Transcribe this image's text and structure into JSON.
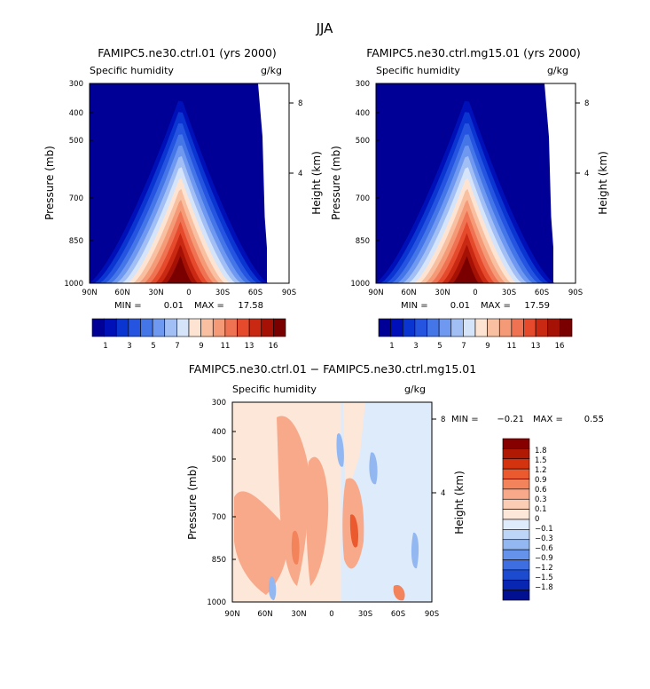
{
  "page_title": "JJA",
  "chart_data": [
    {
      "type": "contour",
      "title": "FAMIPC5.ne30.ctrl.01 (yrs 2000)",
      "variable": "Specific humidity",
      "units": "g/kg",
      "ylabel": "Pressure (mb)",
      "ylabel_right": "Height (km)",
      "x_ticks": [
        "90N",
        "60N",
        "30N",
        "0",
        "30S",
        "60S",
        "90S"
      ],
      "y_ticks": [
        "300",
        "400",
        "500",
        "700",
        "850",
        "1000"
      ],
      "y_right_ticks": [
        "8",
        "4"
      ],
      "x_range": [
        90,
        -90
      ],
      "y_range": [
        1000,
        300
      ],
      "y_scale": "log",
      "min_label": "MIN =",
      "min_value": "0.01",
      "max_label": "MAX =",
      "max_value": "17.58",
      "colorbar_ticks": [
        "1",
        "3",
        "5",
        "7",
        "9",
        "11",
        "13",
        "16"
      ],
      "colorbar_orientation": "horizontal",
      "field_peak_lat": 8
    },
    {
      "type": "contour",
      "title": "FAMIPC5.ne30.ctrl.mg15.01 (yrs 2000)",
      "variable": "Specific humidity",
      "units": "g/kg",
      "ylabel": "Pressure (mb)",
      "ylabel_right": "Height (km)",
      "x_ticks": [
        "90N",
        "60N",
        "30N",
        "0",
        "30S",
        "60S",
        "90S"
      ],
      "y_ticks": [
        "300",
        "400",
        "500",
        "700",
        "850",
        "1000"
      ],
      "y_right_ticks": [
        "8",
        "4"
      ],
      "x_range": [
        90,
        -90
      ],
      "y_range": [
        1000,
        300
      ],
      "y_scale": "log",
      "min_label": "MIN =",
      "min_value": "0.01",
      "max_label": "MAX =",
      "max_value": "17.59",
      "colorbar_ticks": [
        "1",
        "3",
        "5",
        "7",
        "9",
        "11",
        "13",
        "16"
      ],
      "colorbar_orientation": "horizontal",
      "field_peak_lat": 8
    },
    {
      "type": "contour",
      "title": "FAMIPC5.ne30.ctrl.01 − FAMIPC5.ne30.ctrl.mg15.01",
      "variable": "Specific humidity",
      "units": "g/kg",
      "ylabel": "Pressure (mb)",
      "ylabel_right": "Height (km)",
      "x_ticks": [
        "90N",
        "60N",
        "30N",
        "0",
        "30S",
        "60S",
        "90S"
      ],
      "y_ticks": [
        "300",
        "400",
        "500",
        "700",
        "850",
        "1000"
      ],
      "y_right_ticks": [
        "8",
        "4"
      ],
      "x_range": [
        90,
        -90
      ],
      "y_range": [
        1000,
        300
      ],
      "y_scale": "log",
      "min_label": "MIN =",
      "min_value": "−0.21",
      "max_label": "MAX =",
      "max_value": "0.55",
      "colorbar_ticks": [
        "1.8",
        "1.5",
        "1.2",
        "0.9",
        "0.6",
        "0.3",
        "0.1",
        "0",
        "−0.1",
        "−0.3",
        "−0.6",
        "−0.9",
        "−1.2",
        "−1.5",
        "−1.8"
      ],
      "colorbar_orientation": "vertical",
      "difference_regions": [
        {
          "lat_from": 90,
          "lat_to": 30,
          "sign": "positive"
        },
        {
          "lat_from": 30,
          "lat_to": -10,
          "sign": "positive"
        },
        {
          "lat_from": -10,
          "lat_to": -90,
          "sign": "negative"
        }
      ]
    }
  ],
  "colors": {
    "seq_colorbar": [
      "#000096",
      "#0010b8",
      "#0a35d0",
      "#2454e0",
      "#4576e8",
      "#6f99f0",
      "#a2bff5",
      "#d6e4fa",
      "#fde4d2",
      "#f9bfa1",
      "#f49a77",
      "#ef7352",
      "#e64a2c",
      "#c92812",
      "#a51205",
      "#7a0000"
    ],
    "div_colorbar": [
      "#870000",
      "#b01a05",
      "#d43310",
      "#ea5a2e",
      "#f3835b",
      "#f8a98a",
      "#fbcdb5",
      "#fde7d9",
      "#deebfb",
      "#bdd6f7",
      "#93b7f1",
      "#6592ea",
      "#3e6ee0",
      "#1d4bd0",
      "#0826b2",
      "#001090"
    ]
  }
}
